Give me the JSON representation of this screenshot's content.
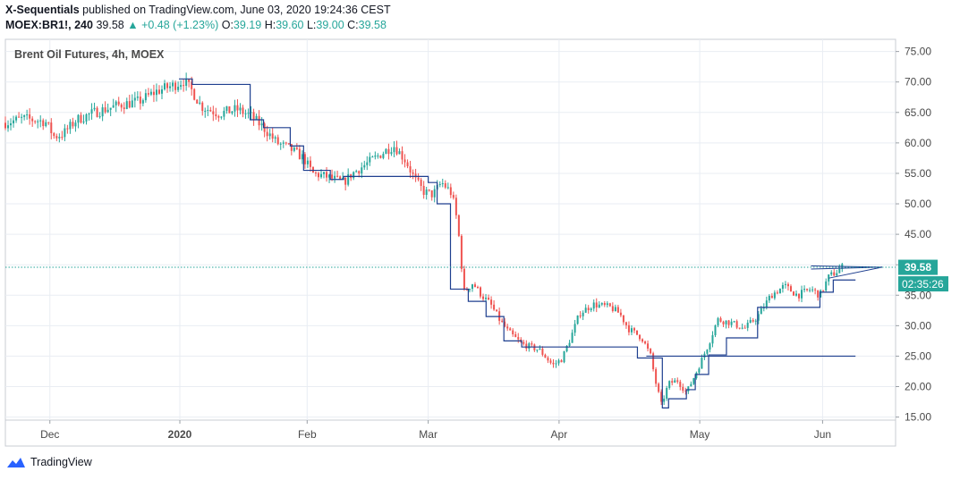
{
  "header": {
    "author": "X-Sequentials",
    "published_text": "published on TradingView.com, June 03, 2020 19:24:36 CEST",
    "symbol": "MOEX:BR1!, 240",
    "last": "39.58",
    "change": "+0.48 (+1.23%)",
    "open_label": "O:",
    "open": "39.19",
    "high_label": "H:",
    "high": "39.60",
    "low_label": "L:",
    "low": "39.00",
    "close_label": "C:",
    "close": "39.58"
  },
  "footer": {
    "brand": "TradingView"
  },
  "colors": {
    "up": "#26a69a",
    "down": "#ef5350",
    "line": "#1e3f8f",
    "price_tag": "#26a69a",
    "grid": "#e9edf3",
    "axis_text": "#4a4a4a"
  },
  "chart_data": {
    "type": "candlestick",
    "title": "Brent Oil Futures, 4h, MOEX",
    "ylim": [
      14.5,
      77
    ],
    "y_ticks": [
      "75.00",
      "70.00",
      "65.00",
      "60.00",
      "55.00",
      "50.00",
      "45.00",
      "40.00",
      "35.00",
      "30.00",
      "25.00",
      "20.00",
      "15.00"
    ],
    "x_ticks": [
      {
        "label": "Dec",
        "t": 0.05
      },
      {
        "label": "2020",
        "t": 0.196
      },
      {
        "label": "Feb",
        "t": 0.339
      },
      {
        "label": "Mar",
        "t": 0.475
      },
      {
        "label": "Apr",
        "t": 0.622
      },
      {
        "label": "May",
        "t": 0.78
      },
      {
        "label": "Jun",
        "t": 0.918
      }
    ],
    "last_price_label": "39.58",
    "countdown_label": "02:35:26",
    "last_price": 39.58,
    "price_path": [
      [
        0.0,
        63.3
      ],
      [
        0.02,
        64.0
      ],
      [
        0.045,
        63.5
      ],
      [
        0.055,
        61.0
      ],
      [
        0.065,
        61.5
      ],
      [
        0.08,
        63.8
      ],
      [
        0.1,
        65.0
      ],
      [
        0.13,
        66.3
      ],
      [
        0.15,
        66.8
      ],
      [
        0.17,
        68.5
      ],
      [
        0.19,
        69.5
      ],
      [
        0.2,
        70.2
      ],
      [
        0.21,
        68.5
      ],
      [
        0.22,
        66.0
      ],
      [
        0.24,
        64.8
      ],
      [
        0.26,
        65.5
      ],
      [
        0.275,
        64.5
      ],
      [
        0.29,
        62.5
      ],
      [
        0.305,
        60.0
      ],
      [
        0.32,
        59.0
      ],
      [
        0.335,
        57.5
      ],
      [
        0.345,
        55.0
      ],
      [
        0.36,
        54.5
      ],
      [
        0.38,
        53.5
      ],
      [
        0.39,
        55.0
      ],
      [
        0.41,
        57.0
      ],
      [
        0.43,
        59.0
      ],
      [
        0.437,
        59.5
      ],
      [
        0.45,
        57.0
      ],
      [
        0.46,
        54.0
      ],
      [
        0.47,
        52.0
      ],
      [
        0.48,
        51.5
      ],
      [
        0.49,
        53.5
      ],
      [
        0.5,
        52.0
      ],
      [
        0.505,
        49.5
      ],
      [
        0.51,
        44.0
      ],
      [
        0.515,
        35.5
      ],
      [
        0.525,
        37.0
      ],
      [
        0.535,
        35.0
      ],
      [
        0.545,
        33.5
      ],
      [
        0.555,
        31.0
      ],
      [
        0.565,
        29.0
      ],
      [
        0.58,
        27.0
      ],
      [
        0.6,
        26.0
      ],
      [
        0.615,
        23.5
      ],
      [
        0.625,
        24.5
      ],
      [
        0.635,
        28.0
      ],
      [
        0.645,
        32.0
      ],
      [
        0.66,
        33.5
      ],
      [
        0.68,
        33.0
      ],
      [
        0.69,
        32.0
      ],
      [
        0.7,
        29.5
      ],
      [
        0.715,
        28.0
      ],
      [
        0.725,
        25.0
      ],
      [
        0.73,
        21.0
      ],
      [
        0.737,
        17.0
      ],
      [
        0.745,
        20.5
      ],
      [
        0.755,
        21.0
      ],
      [
        0.765,
        19.0
      ],
      [
        0.775,
        22.0
      ],
      [
        0.79,
        27.0
      ],
      [
        0.8,
        31.0
      ],
      [
        0.815,
        30.5
      ],
      [
        0.83,
        29.5
      ],
      [
        0.845,
        31.5
      ],
      [
        0.86,
        35.0
      ],
      [
        0.875,
        36.5
      ],
      [
        0.89,
        35.0
      ],
      [
        0.905,
        36.0
      ],
      [
        0.915,
        35.0
      ],
      [
        0.925,
        38.0
      ],
      [
        0.935,
        39.0
      ],
      [
        0.94,
        39.58
      ]
    ],
    "sequential_line": [
      [
        0.195,
        70.5
      ],
      [
        0.21,
        70.5
      ],
      [
        0.21,
        69.6
      ],
      [
        0.275,
        69.6
      ],
      [
        0.275,
        63.8
      ],
      [
        0.29,
        63.8
      ],
      [
        0.29,
        62.5
      ],
      [
        0.32,
        62.5
      ],
      [
        0.32,
        59.5
      ],
      [
        0.335,
        59.5
      ],
      [
        0.335,
        55.5
      ],
      [
        0.365,
        55.5
      ],
      [
        0.365,
        54.0
      ],
      [
        0.38,
        54.0
      ],
      [
        0.38,
        54.5
      ],
      [
        0.475,
        54.5
      ],
      [
        0.475,
        53.5
      ],
      [
        0.485,
        53.5
      ],
      [
        0.485,
        50.0
      ],
      [
        0.5,
        50.0
      ],
      [
        0.5,
        36.0
      ],
      [
        0.52,
        36.0
      ],
      [
        0.52,
        34.0
      ],
      [
        0.54,
        34.0
      ],
      [
        0.54,
        31.5
      ],
      [
        0.56,
        31.5
      ],
      [
        0.56,
        27.5
      ],
      [
        0.58,
        27.5
      ],
      [
        0.58,
        26.5
      ],
      [
        0.71,
        26.5
      ],
      [
        0.71,
        24.7
      ],
      [
        0.738,
        24.7
      ],
      [
        0.738,
        16.5
      ],
      [
        0.745,
        16.5
      ],
      [
        0.745,
        18.0
      ],
      [
        0.765,
        18.0
      ],
      [
        0.765,
        19.5
      ],
      [
        0.775,
        19.5
      ],
      [
        0.775,
        22.0
      ],
      [
        0.79,
        22.0
      ],
      [
        0.79,
        25.2
      ],
      [
        0.81,
        25.2
      ],
      [
        0.81,
        28.0
      ],
      [
        0.845,
        28.0
      ],
      [
        0.845,
        33.0
      ],
      [
        0.915,
        33.0
      ],
      [
        0.915,
        35.5
      ],
      [
        0.93,
        35.5
      ],
      [
        0.93,
        37.5
      ],
      [
        0.955,
        37.5
      ]
    ],
    "horizontal_level": {
      "from": 0.72,
      "to": 0.955,
      "y": 25.0
    },
    "trend_lines": [
      [
        [
          0.905,
          39.8
        ],
        [
          0.985,
          39.6
        ]
      ],
      [
        [
          0.905,
          39.3
        ],
        [
          0.985,
          39.6
        ]
      ],
      [
        [
          0.925,
          37.8
        ],
        [
          0.985,
          39.6
        ]
      ]
    ]
  }
}
